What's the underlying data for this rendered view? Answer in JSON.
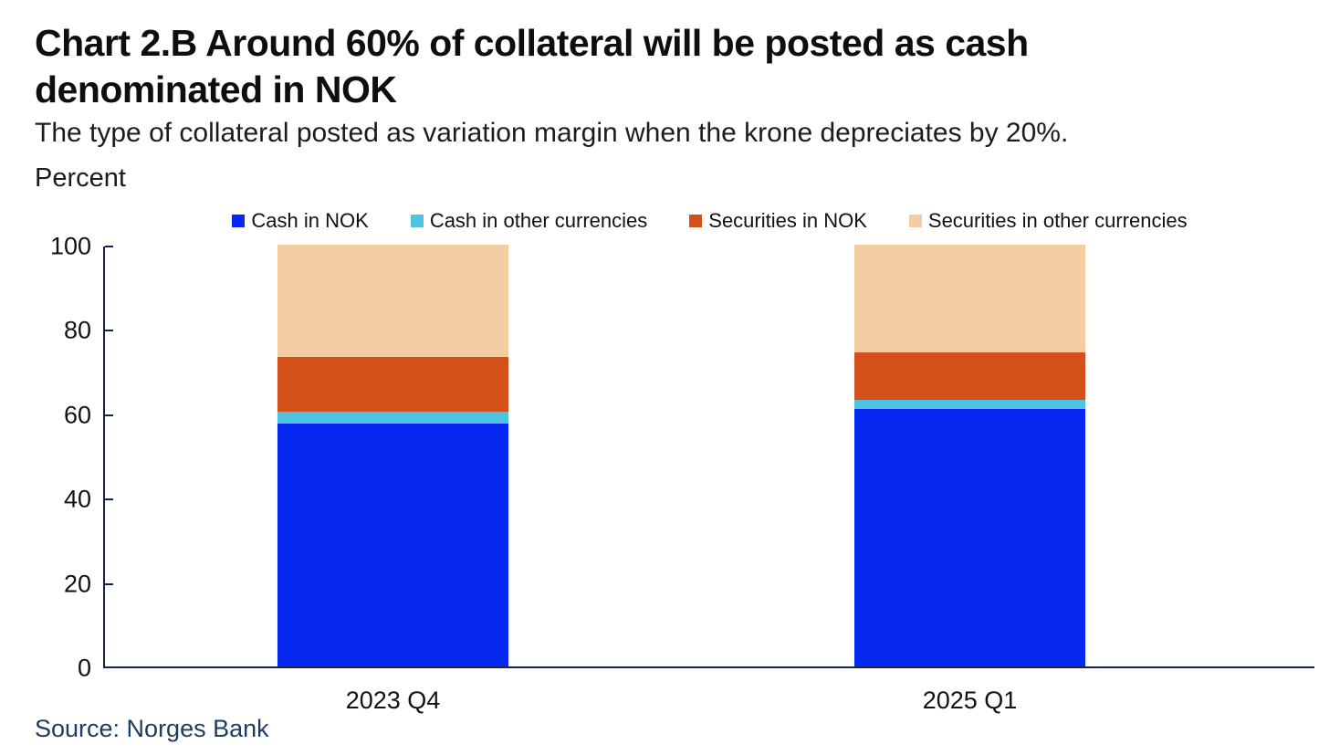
{
  "header": {
    "title": {
      "line1": "Chart 2.B Around 60% of collateral will be posted as cash",
      "line2": "denominated in NOK"
    },
    "subtitle": "The type of collateral posted as variation margin when the krone depreciates by 20%."
  },
  "source": {
    "text": "Source: Norges Bank"
  },
  "chart_data": {
    "type": "bar",
    "stacked": true,
    "title": "Chart 2.B Around 60% of collateral will be posted as cash denominated in NOK",
    "subtitle": "The type of collateral posted as variation margin when the krone depreciates by 20%.",
    "ylabel": "Percent",
    "xlabel": "",
    "ylim": [
      0,
      100
    ],
    "yticks": [
      0,
      20,
      40,
      60,
      80,
      100
    ],
    "grid": false,
    "legend_position": "top-center",
    "categories": [
      "2023 Q4",
      "2025 Q1"
    ],
    "series": [
      {
        "name": "Cash in NOK",
        "color": "#0628F0",
        "values": [
          57.5,
          61.0
        ]
      },
      {
        "name": "Cash in other currencies",
        "color": "#4EC3E2",
        "values": [
          2.8,
          2.2
        ]
      },
      {
        "name": "Securities in NOK",
        "color": "#D4511C",
        "values": [
          13.1,
          11.3
        ]
      },
      {
        "name": "Securities in other currencies",
        "color": "#F4CDA2",
        "values": [
          26.6,
          25.5
        ]
      }
    ],
    "axis_color": "#16244C"
  }
}
